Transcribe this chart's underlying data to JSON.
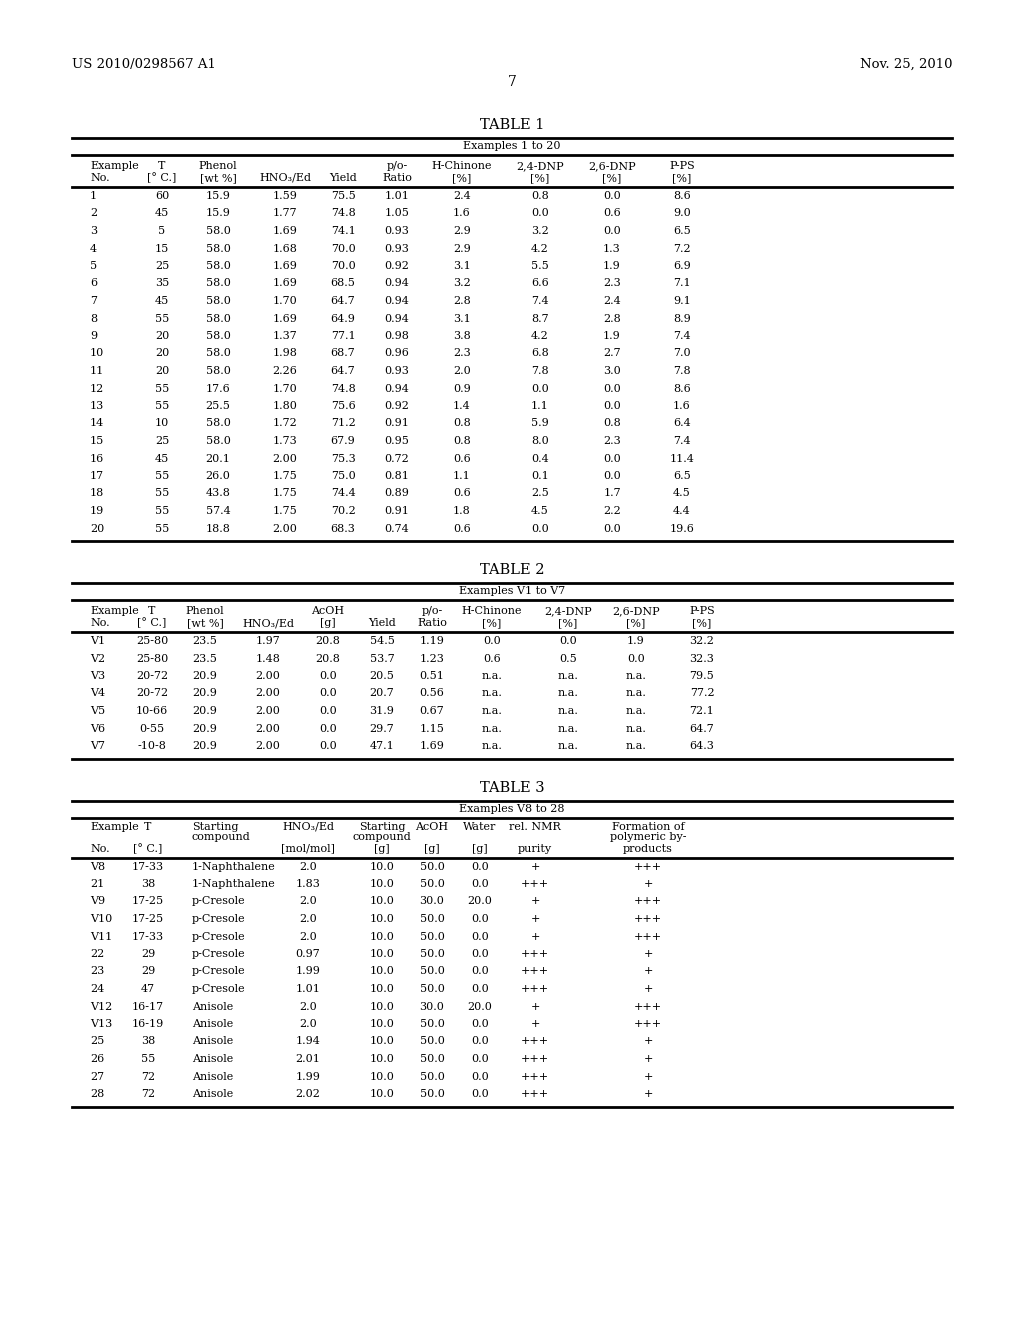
{
  "header_left": "US 2010/0298567 A1",
  "header_right": "Nov. 25, 2010",
  "page_number": "7",
  "table1_title": "TABLE 1",
  "table1_subtitle": "Examples 1 to 20",
  "table1_data": [
    [
      "1",
      "60",
      "15.9",
      "1.59",
      "75.5",
      "1.01",
      "2.4",
      "0.8",
      "0.0",
      "8.6"
    ],
    [
      "2",
      "45",
      "15.9",
      "1.77",
      "74.8",
      "1.05",
      "1.6",
      "0.0",
      "0.6",
      "9.0"
    ],
    [
      "3",
      "5",
      "58.0",
      "1.69",
      "74.1",
      "0.93",
      "2.9",
      "3.2",
      "0.0",
      "6.5"
    ],
    [
      "4",
      "15",
      "58.0",
      "1.68",
      "70.0",
      "0.93",
      "2.9",
      "4.2",
      "1.3",
      "7.2"
    ],
    [
      "5",
      "25",
      "58.0",
      "1.69",
      "70.0",
      "0.92",
      "3.1",
      "5.5",
      "1.9",
      "6.9"
    ],
    [
      "6",
      "35",
      "58.0",
      "1.69",
      "68.5",
      "0.94",
      "3.2",
      "6.6",
      "2.3",
      "7.1"
    ],
    [
      "7",
      "45",
      "58.0",
      "1.70",
      "64.7",
      "0.94",
      "2.8",
      "7.4",
      "2.4",
      "9.1"
    ],
    [
      "8",
      "55",
      "58.0",
      "1.69",
      "64.9",
      "0.94",
      "3.1",
      "8.7",
      "2.8",
      "8.9"
    ],
    [
      "9",
      "20",
      "58.0",
      "1.37",
      "77.1",
      "0.98",
      "3.8",
      "4.2",
      "1.9",
      "7.4"
    ],
    [
      "10",
      "20",
      "58.0",
      "1.98",
      "68.7",
      "0.96",
      "2.3",
      "6.8",
      "2.7",
      "7.0"
    ],
    [
      "11",
      "20",
      "58.0",
      "2.26",
      "64.7",
      "0.93",
      "2.0",
      "7.8",
      "3.0",
      "7.8"
    ],
    [
      "12",
      "55",
      "17.6",
      "1.70",
      "74.8",
      "0.94",
      "0.9",
      "0.0",
      "0.0",
      "8.6"
    ],
    [
      "13",
      "55",
      "25.5",
      "1.80",
      "75.6",
      "0.92",
      "1.4",
      "1.1",
      "0.0",
      "1.6"
    ],
    [
      "14",
      "10",
      "58.0",
      "1.72",
      "71.2",
      "0.91",
      "0.8",
      "5.9",
      "0.8",
      "6.4"
    ],
    [
      "15",
      "25",
      "58.0",
      "1.73",
      "67.9",
      "0.95",
      "0.8",
      "8.0",
      "2.3",
      "7.4"
    ],
    [
      "16",
      "45",
      "20.1",
      "2.00",
      "75.3",
      "0.72",
      "0.6",
      "0.4",
      "0.0",
      "11.4"
    ],
    [
      "17",
      "55",
      "26.0",
      "1.75",
      "75.0",
      "0.81",
      "1.1",
      "0.1",
      "0.0",
      "6.5"
    ],
    [
      "18",
      "55",
      "43.8",
      "1.75",
      "74.4",
      "0.89",
      "0.6",
      "2.5",
      "1.7",
      "4.5"
    ],
    [
      "19",
      "55",
      "57.4",
      "1.75",
      "70.2",
      "0.91",
      "1.8",
      "4.5",
      "2.2",
      "4.4"
    ],
    [
      "20",
      "55",
      "18.8",
      "2.00",
      "68.3",
      "0.74",
      "0.6",
      "0.0",
      "0.0",
      "19.6"
    ]
  ],
  "table2_title": "TABLE 2",
  "table2_subtitle": "Examples V1 to V7",
  "table2_data": [
    [
      "V1",
      "25-80",
      "23.5",
      "1.97",
      "20.8",
      "54.5",
      "1.19",
      "0.0",
      "0.0",
      "1.9",
      "32.2"
    ],
    [
      "V2",
      "25-80",
      "23.5",
      "1.48",
      "20.8",
      "53.7",
      "1.23",
      "0.6",
      "0.5",
      "0.0",
      "32.3"
    ],
    [
      "V3",
      "20-72",
      "20.9",
      "2.00",
      "0.0",
      "20.5",
      "0.51",
      "n.a.",
      "n.a.",
      "n.a.",
      "79.5"
    ],
    [
      "V4",
      "20-72",
      "20.9",
      "2.00",
      "0.0",
      "20.7",
      "0.56",
      "n.a.",
      "n.a.",
      "n.a.",
      "77.2"
    ],
    [
      "V5",
      "10-66",
      "20.9",
      "2.00",
      "0.0",
      "31.9",
      "0.67",
      "n.a.",
      "n.a.",
      "n.a.",
      "72.1"
    ],
    [
      "V6",
      "0-55",
      "20.9",
      "2.00",
      "0.0",
      "29.7",
      "1.15",
      "n.a.",
      "n.a.",
      "n.a.",
      "64.7"
    ],
    [
      "V7",
      "-10-8",
      "20.9",
      "2.00",
      "0.0",
      "47.1",
      "1.69",
      "n.a.",
      "n.a.",
      "n.a.",
      "64.3"
    ]
  ],
  "table3_title": "TABLE 3",
  "table3_subtitle": "Examples V8 to 28",
  "table3_data": [
    [
      "V8",
      "17-33",
      "1-Naphthalene",
      "2.0",
      "10.0",
      "50.0",
      "0.0",
      "+",
      "+++"
    ],
    [
      "21",
      "38",
      "1-Naphthalene",
      "1.83",
      "10.0",
      "50.0",
      "0.0",
      "+++",
      "+"
    ],
    [
      "V9",
      "17-25",
      "p-Cresole",
      "2.0",
      "10.0",
      "30.0",
      "20.0",
      "+",
      "+++"
    ],
    [
      "V10",
      "17-25",
      "p-Cresole",
      "2.0",
      "10.0",
      "50.0",
      "0.0",
      "+",
      "+++"
    ],
    [
      "V11",
      "17-33",
      "p-Cresole",
      "2.0",
      "10.0",
      "50.0",
      "0.0",
      "+",
      "+++"
    ],
    [
      "22",
      "29",
      "p-Cresole",
      "0.97",
      "10.0",
      "50.0",
      "0.0",
      "+++",
      "+"
    ],
    [
      "23",
      "29",
      "p-Cresole",
      "1.99",
      "10.0",
      "50.0",
      "0.0",
      "+++",
      "+"
    ],
    [
      "24",
      "47",
      "p-Cresole",
      "1.01",
      "10.0",
      "50.0",
      "0.0",
      "+++",
      "+"
    ],
    [
      "V12",
      "16-17",
      "Anisole",
      "2.0",
      "10.0",
      "30.0",
      "20.0",
      "+",
      "+++"
    ],
    [
      "V13",
      "16-19",
      "Anisole",
      "2.0",
      "10.0",
      "50.0",
      "0.0",
      "+",
      "+++"
    ],
    [
      "25",
      "38",
      "Anisole",
      "1.94",
      "10.0",
      "50.0",
      "0.0",
      "+++",
      "+"
    ],
    [
      "26",
      "55",
      "Anisole",
      "2.01",
      "10.0",
      "50.0",
      "0.0",
      "+++",
      "+"
    ],
    [
      "27",
      "72",
      "Anisole",
      "1.99",
      "10.0",
      "50.0",
      "0.0",
      "+++",
      "+"
    ],
    [
      "28",
      "72",
      "Anisole",
      "2.02",
      "10.0",
      "50.0",
      "0.0",
      "+++",
      "+"
    ]
  ],
  "bg_color": "#ffffff",
  "text_color": "#000000"
}
